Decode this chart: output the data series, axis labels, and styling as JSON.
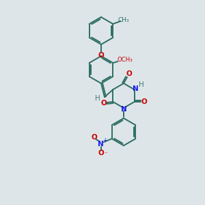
{
  "bg_color": "#dde5e8",
  "bond_color": "#2d6e62",
  "atom_colors": {
    "O": "#cc0000",
    "N": "#1a1aee",
    "H": "#4a7a70",
    "C": "#2d6e62"
  },
  "bond_lw": 1.4,
  "font_size": 7.5
}
